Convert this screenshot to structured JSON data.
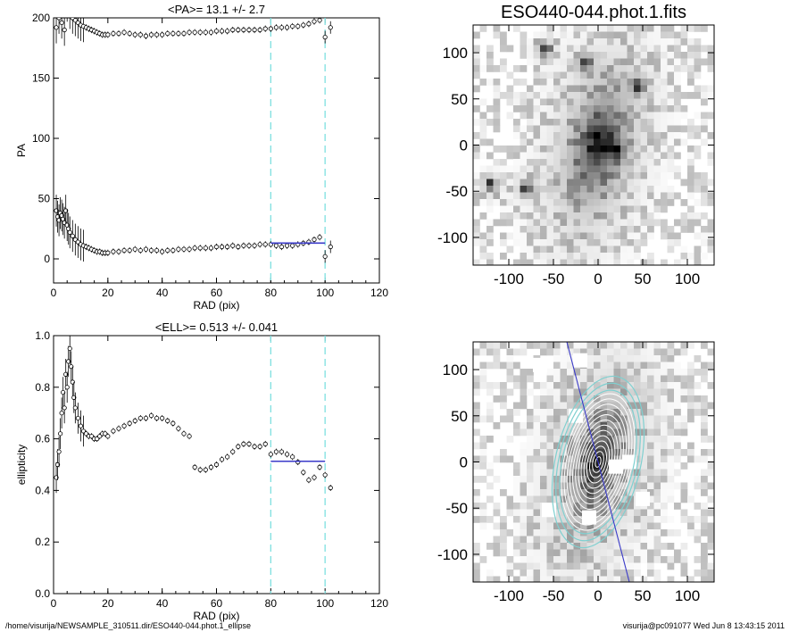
{
  "footer": {
    "left": "/home/visurija/NEWSAMPLE_310511.dir/ESO440-044.phot.1_ellipse",
    "right": "visurija@pc091077  Wed Jun  8 13:43:15 2011"
  },
  "colors": {
    "fit": "#3a3ac8",
    "guide": "#7ee0e0",
    "marker": "#000000",
    "overlay_contour": "#7fd0d0"
  },
  "chart_data": [
    {
      "type": "scatter",
      "title": "<PA>=  13.1 +/-   2.7",
      "xlabel": "RAD (pix)",
      "ylabel": "PA",
      "xlim": [
        0,
        120
      ],
      "ylim": [
        -20,
        200
      ],
      "xticks": [
        0,
        20,
        40,
        60,
        80,
        100,
        120
      ],
      "yticks": [
        0,
        50,
        100,
        150,
        200
      ],
      "guide_lines_x": [
        80,
        100
      ],
      "fit_segment": {
        "x": [
          80,
          100
        ],
        "y": [
          13.1,
          13.1
        ]
      },
      "series": [
        {
          "x": [
            1,
            1.5,
            2,
            2.5,
            3,
            3.5,
            4,
            4.5,
            5,
            5.5,
            6,
            7,
            8,
            9,
            10,
            11,
            12,
            13,
            14,
            15,
            16,
            17,
            18,
            19,
            20,
            22,
            24,
            26,
            28,
            30,
            32,
            34,
            36,
            38,
            40,
            42,
            44,
            46,
            48,
            50,
            52,
            54,
            56,
            58,
            60,
            62,
            64,
            66,
            68,
            70,
            72,
            74,
            76,
            78,
            80,
            82,
            84,
            86,
            88,
            90,
            92,
            94,
            96,
            98
          ],
          "y": [
            40,
            35,
            32,
            38,
            36,
            33,
            30,
            40,
            28,
            25,
            22,
            19,
            16,
            14,
            12,
            11,
            10,
            9,
            8,
            7,
            6,
            6,
            5,
            5,
            5,
            6,
            6,
            7,
            7,
            8,
            7,
            8,
            7,
            7,
            6,
            7,
            7,
            8,
            8,
            8,
            9,
            9,
            9,
            9,
            10,
            10,
            10,
            11,
            10,
            11,
            11,
            11,
            12,
            12,
            12,
            11,
            10,
            11,
            11,
            12,
            13,
            14,
            16,
            18
          ]
        },
        {
          "x": [
            4,
            5,
            6,
            7,
            8,
            9,
            10,
            11,
            12,
            13,
            14,
            15,
            16,
            17,
            18,
            19,
            20,
            22,
            24,
            26,
            28,
            30,
            32,
            34,
            36,
            38,
            40,
            42,
            44,
            46,
            48,
            50,
            52,
            54,
            56,
            58,
            60,
            62,
            64,
            66,
            68,
            70,
            72,
            74,
            76,
            78,
            80,
            82,
            84,
            86,
            88,
            90,
            92,
            94,
            96,
            98
          ],
          "y": [
            218,
            210,
            204,
            200,
            198,
            196,
            194,
            193,
            192,
            191,
            190,
            189,
            188,
            187,
            186,
            186,
            186,
            187,
            187,
            188,
            187,
            186,
            186,
            185,
            186,
            186,
            186,
            187,
            187,
            187,
            187,
            188,
            188,
            188,
            188,
            188,
            189,
            189,
            189,
            190,
            190,
            190,
            190,
            190,
            190,
            191,
            191,
            192,
            192,
            192,
            193,
            193,
            194,
            195,
            197,
            198
          ]
        },
        {
          "x": [
            1,
            2,
            3,
            4
          ],
          "y": [
            192,
            200,
            196,
            190
          ]
        }
      ],
      "outliers": {
        "x": [
          100,
          100,
          102,
          102
        ],
        "y": [
          2,
          184,
          10,
          192
        ]
      }
    },
    {
      "type": "scatter",
      "title": "<ELL>= 0.513 +/-  0.041",
      "xlabel": "RAD (pix)",
      "ylabel": "ellipticity",
      "xlim": [
        0,
        120
      ],
      "ylim": [
        0.0,
        1.0
      ],
      "xticks": [
        0,
        20,
        40,
        60,
        80,
        100,
        120
      ],
      "yticks": [
        0.0,
        0.2,
        0.4,
        0.6,
        0.8,
        1.0
      ],
      "ytick_labels": [
        "0.0",
        "0.2",
        "0.4",
        "0.6",
        "0.8",
        "1.0"
      ],
      "guide_lines_x": [
        80,
        100
      ],
      "fit_segment": {
        "x": [
          80,
          100
        ],
        "y": [
          0.513,
          0.513
        ]
      },
      "series": [
        {
          "x": [
            1,
            1.5,
            2,
            2.5,
            3,
            3.5,
            4,
            4.5,
            5,
            5.5,
            6,
            6.5,
            7,
            7.5,
            8,
            9,
            10,
            11,
            12,
            13,
            14,
            15,
            16,
            17,
            18,
            19,
            20,
            22,
            24,
            26,
            28,
            30,
            32,
            34,
            36,
            38,
            40,
            42,
            44,
            46,
            48,
            50,
            52,
            54,
            56,
            58,
            60,
            62,
            64,
            66,
            68,
            70,
            72,
            74,
            76,
            78,
            80,
            82,
            84,
            86,
            88,
            90,
            92,
            94,
            96,
            98,
            100,
            102
          ],
          "y": [
            0.45,
            0.5,
            0.55,
            0.62,
            0.7,
            0.78,
            0.72,
            0.85,
            0.8,
            0.9,
            0.95,
            0.88,
            0.82,
            0.76,
            0.72,
            0.68,
            0.65,
            0.63,
            0.62,
            0.61,
            0.61,
            0.6,
            0.6,
            0.61,
            0.62,
            0.62,
            0.61,
            0.63,
            0.64,
            0.65,
            0.66,
            0.67,
            0.68,
            0.68,
            0.69,
            0.68,
            0.68,
            0.67,
            0.66,
            0.64,
            0.62,
            0.61,
            0.49,
            0.48,
            0.48,
            0.49,
            0.5,
            0.52,
            0.53,
            0.55,
            0.57,
            0.58,
            0.58,
            0.57,
            0.57,
            0.58,
            0.54,
            0.55,
            0.55,
            0.54,
            0.53,
            0.51,
            0.47,
            0.44,
            0.45,
            0.49,
            0.46,
            0.41
          ]
        }
      ]
    },
    {
      "type": "heatmap",
      "title": "ESO440-044.phot.1.fits",
      "xlim": [
        -140,
        130
      ],
      "ylim": [
        -130,
        130
      ],
      "xticks": [
        -100,
        -50,
        0,
        50,
        100
      ],
      "yticks": [
        -100,
        -50,
        0,
        50,
        100
      ],
      "colormap": "grayscale inverted",
      "sources": [
        {
          "x": 20,
          "y": -5
        },
        {
          "x": -60,
          "y": 103
        },
        {
          "x": -120,
          "y": -43
        },
        {
          "x": -80,
          "y": -48
        },
        {
          "x": -15,
          "y": 88
        },
        {
          "x": 45,
          "y": 65
        }
      ]
    },
    {
      "type": "heatmap",
      "title": "",
      "xlim": [
        -140,
        130
      ],
      "ylim": [
        -130,
        130
      ],
      "xticks": [
        -100,
        -50,
        0,
        50,
        100
      ],
      "yticks": [
        -100,
        -50,
        0,
        50,
        100
      ],
      "colormap": "grayscale inverted",
      "ellipse_pa_deg": 13.1,
      "ellipse_ell": 0.513,
      "contours_semi_major": [
        6,
        12,
        18,
        24,
        30,
        36,
        42,
        48,
        54,
        60,
        66,
        72,
        78
      ],
      "outer_ellipses_semi_major": [
        82,
        90,
        98
      ],
      "axis_line": {
        "x": [
          -35,
          35
        ],
        "y": [
          130,
          -130
        ]
      },
      "masked_boxes": [
        {
          "x": -65,
          "y": 105
        },
        {
          "x": 20,
          "y": -5
        },
        {
          "x": -25,
          "y": 50
        },
        {
          "x": 35,
          "y": 0
        },
        {
          "x": -55,
          "y": -52
        },
        {
          "x": -20,
          "y": 110
        },
        {
          "x": 50,
          "y": -40
        },
        {
          "x": -10,
          "y": -60
        }
      ]
    }
  ]
}
